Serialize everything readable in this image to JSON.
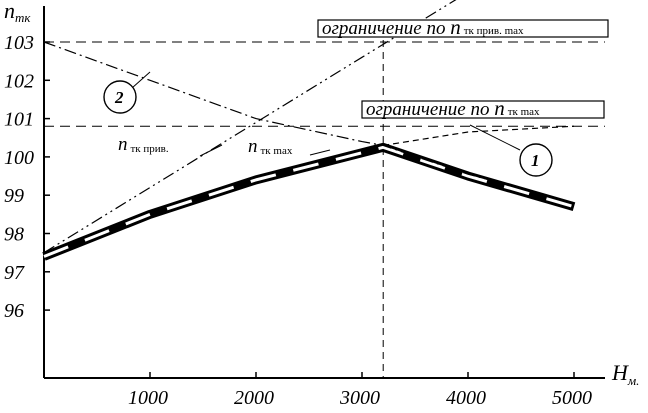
{
  "chart_data": {
    "type": "line",
    "xlabel": {
      "main": "H",
      "sub": "м."
    },
    "ylabel": {
      "main": "n",
      "sub": "тк"
    },
    "xlim": [
      0,
      5400
    ],
    "ylim": [
      95,
      103.5
    ],
    "x_ticks": [
      "1000",
      "2000",
      "3000",
      "4000",
      "5000"
    ],
    "y_ticks": [
      "96",
      "97",
      "98",
      "99",
      "100",
      "101",
      "102",
      "103"
    ],
    "grid": false,
    "series": [
      {
        "name": "n тк max",
        "style": "thick-band",
        "x": [
          0,
          1000,
          2000,
          3200,
          4000,
          5000
        ],
        "y": [
          97.4,
          98.5,
          99.4,
          100.25,
          99.5,
          98.7
        ]
      },
      {
        "name": "n тк прив.",
        "style": "dash-dot-dot",
        "x": [
          0,
          1000,
          2000,
          3000,
          4000
        ],
        "y": [
          97.5,
          99.2,
          100.9,
          102.6,
          104.3
        ]
      },
      {
        "name": "",
        "style": "dash-dot",
        "label": "2",
        "x": [
          0,
          1000,
          2000,
          3000,
          3200,
          4000,
          5000
        ],
        "y": [
          103.0,
          102.0,
          101.0,
          100.4,
          100.3,
          99.55,
          98.8
        ]
      },
      {
        "name": "",
        "style": "dashed",
        "label": "1",
        "x": [
          3200,
          4000,
          5000
        ],
        "y": [
          100.3,
          100.65,
          100.8
        ]
      }
    ],
    "reference_lines": [
      {
        "axis": "y",
        "value": 103.0,
        "label": {
          "pre": "ограничение по ",
          "main": "n",
          "sub": "тк прив. max"
        }
      },
      {
        "axis": "y",
        "value": 100.8,
        "label": {
          "pre": "ограничение по ",
          "main": "n",
          "sub": "тк max"
        }
      },
      {
        "axis": "x",
        "value": 3200
      }
    ],
    "annotations": [
      {
        "text": "n",
        "sub": "тк прив."
      },
      {
        "text": "n",
        "sub": "тк max"
      },
      {
        "text": "2",
        "circled": true
      },
      {
        "text": "1",
        "circled": true
      }
    ]
  }
}
